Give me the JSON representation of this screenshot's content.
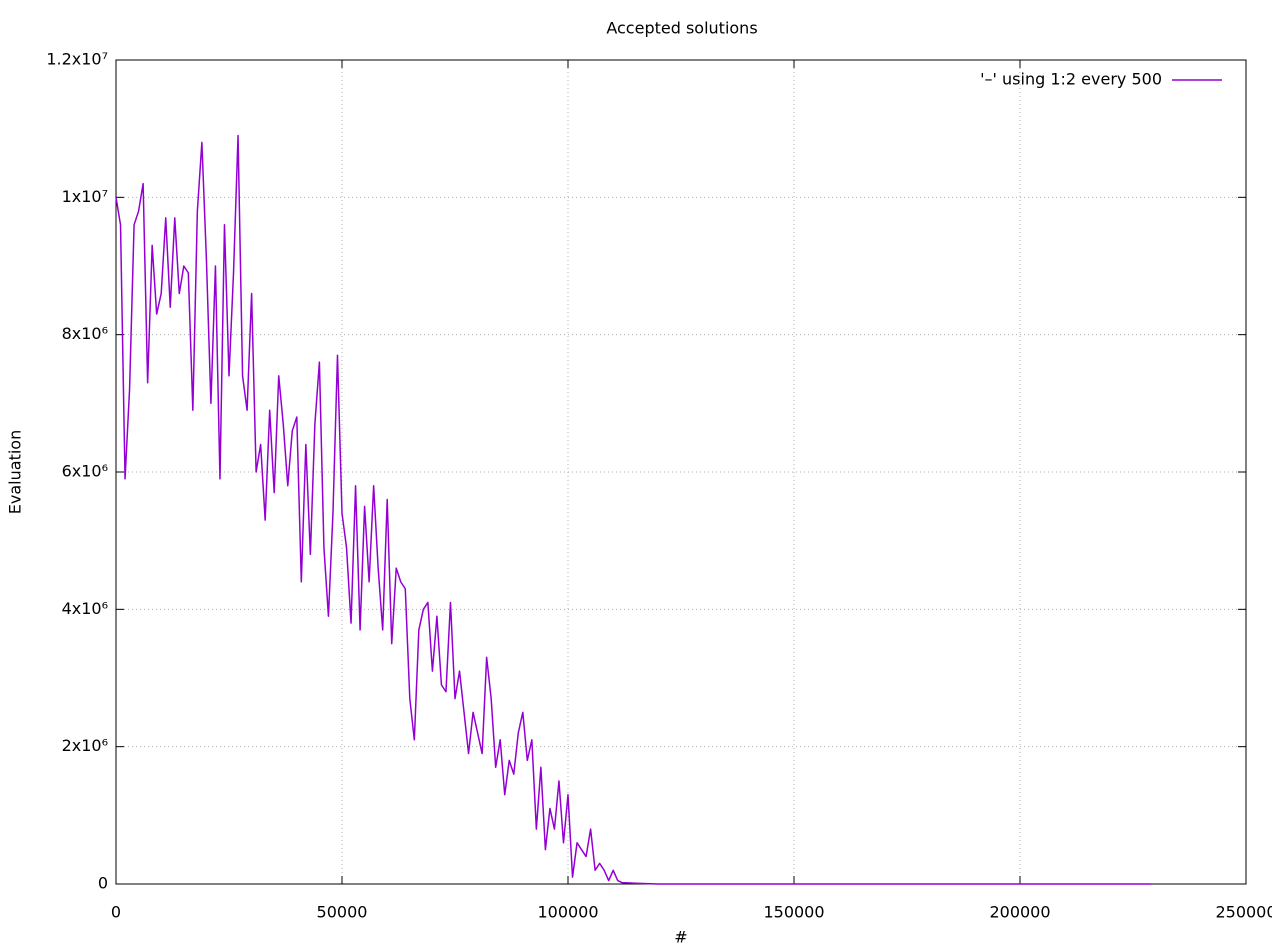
{
  "chart_data": {
    "type": "line",
    "title": "Accepted solutions",
    "xlabel": "#",
    "ylabel": "Evaluation",
    "x": [
      0,
      1000,
      2000,
      3000,
      4000,
      5000,
      6000,
      7000,
      8000,
      9000,
      10000,
      11000,
      12000,
      13000,
      14000,
      15000,
      16000,
      17000,
      18000,
      19000,
      20000,
      21000,
      22000,
      23000,
      24000,
      25000,
      26000,
      27000,
      28000,
      29000,
      30000,
      31000,
      32000,
      33000,
      34000,
      35000,
      36000,
      37000,
      38000,
      39000,
      40000,
      41000,
      42000,
      43000,
      44000,
      45000,
      46000,
      47000,
      48000,
      49000,
      50000,
      51000,
      52000,
      53000,
      54000,
      55000,
      56000,
      57000,
      58000,
      59000,
      60000,
      61000,
      62000,
      63000,
      64000,
      65000,
      66000,
      67000,
      68000,
      69000,
      70000,
      71000,
      72000,
      73000,
      74000,
      75000,
      76000,
      77000,
      78000,
      79000,
      80000,
      81000,
      82000,
      83000,
      84000,
      85000,
      86000,
      87000,
      88000,
      89000,
      90000,
      91000,
      92000,
      93000,
      94000,
      95000,
      96000,
      97000,
      98000,
      99000,
      100000,
      101000,
      102000,
      103000,
      104000,
      105000,
      106000,
      107000,
      108000,
      109000,
      110000,
      111000,
      112000,
      115000,
      120000,
      150000,
      200000,
      229000
    ],
    "series": [
      {
        "name": "'–' using 1:2 every 500",
        "color": "#9400d3",
        "values": [
          10000000,
          9600000,
          5900000,
          7200000,
          9600000,
          9800000,
          10200000,
          7300000,
          9300000,
          8300000,
          8600000,
          9700000,
          8400000,
          9700000,
          8600000,
          9000000,
          8900000,
          6900000,
          9800000,
          10800000,
          9100000,
          7000000,
          9000000,
          5900000,
          9600000,
          7400000,
          8900000,
          10900000,
          7400000,
          6900000,
          8600000,
          6000000,
          6400000,
          5300000,
          6900000,
          5700000,
          7400000,
          6700000,
          5800000,
          6600000,
          6800000,
          4400000,
          6400000,
          4800000,
          6700000,
          7600000,
          4900000,
          3900000,
          5400000,
          7700000,
          5400000,
          4900000,
          3800000,
          5800000,
          3700000,
          5500000,
          4400000,
          5800000,
          4600000,
          3700000,
          5600000,
          3500000,
          4600000,
          4400000,
          4300000,
          2700000,
          2100000,
          3700000,
          4000000,
          4100000,
          3100000,
          3900000,
          2900000,
          2800000,
          4100000,
          2700000,
          3100000,
          2500000,
          1900000,
          2500000,
          2200000,
          1900000,
          3300000,
          2700000,
          1700000,
          2100000,
          1300000,
          1800000,
          1600000,
          2200000,
          2500000,
          1800000,
          2100000,
          800000,
          1700000,
          500000,
          1100000,
          800000,
          1500000,
          600000,
          1300000,
          100000,
          600000,
          500000,
          400000,
          800000,
          200000,
          300000,
          200000,
          50000,
          200000,
          50000,
          20000,
          10000,
          0,
          0,
          0,
          0
        ]
      }
    ],
    "xlim": [
      0,
      250000
    ],
    "ylim": [
      0,
      12000000
    ],
    "xticks": [
      0,
      50000,
      100000,
      150000,
      200000,
      250000
    ],
    "yticks": [
      0,
      {
        "value": 2000000,
        "label": "2x10⁶"
      },
      {
        "value": 4000000,
        "label": "4x10⁶"
      },
      {
        "value": 6000000,
        "label": "6x10⁶"
      },
      {
        "value": 8000000,
        "label": "8x10⁶"
      },
      {
        "value": 10000000,
        "label": "1x10⁷"
      },
      {
        "value": 12000000,
        "label": "1.2x10⁷"
      }
    ],
    "grid": true,
    "legend": "top-right"
  }
}
